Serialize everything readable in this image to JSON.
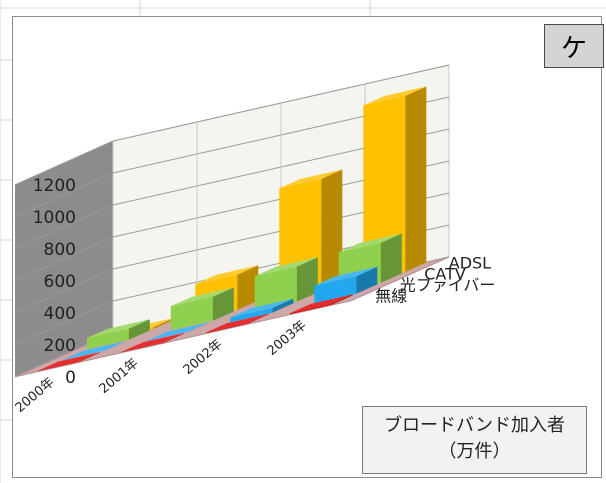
{
  "badge": "ケ",
  "caption": {
    "line1": "ブロードバンド加入者",
    "line2": "（万件）"
  },
  "chart_data": {
    "type": "bar",
    "title": "",
    "categories": [
      "2000年",
      "2001年",
      "2002年",
      "2003年"
    ],
    "y_ticks": [
      "0",
      "200",
      "400",
      "600",
      "800",
      "1000",
      "1200"
    ],
    "ylim": [
      0,
      1200
    ],
    "grid": true,
    "series": [
      {
        "name": "無線",
        "values": [
          2,
          3,
          4,
          6
        ]
      },
      {
        "name": "光ファイバー",
        "values": [
          1,
          2,
          30,
          110
        ]
      },
      {
        "name": "CATV",
        "values": [
          70,
          150,
          220,
          250
        ]
      },
      {
        "name": "ADSL",
        "values": [
          10,
          220,
          700,
          1100
        ]
      }
    ],
    "colors": [
      "#e00000",
      "#21a8ef",
      "#8fd14f",
      "#ffc000"
    ]
  }
}
